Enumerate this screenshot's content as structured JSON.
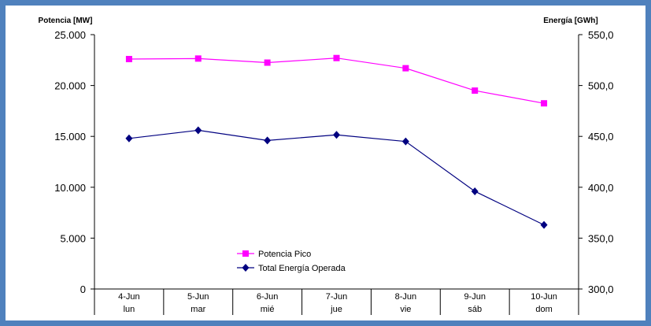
{
  "chart_data": {
    "type": "line",
    "categories": [
      "4-Jun",
      "5-Jun",
      "6-Jun",
      "7-Jun",
      "8-Jun",
      "9-Jun",
      "10-Jun"
    ],
    "day_labels": [
      "lun",
      "mar",
      "mié",
      "jue",
      "vie",
      "sáb",
      "dom"
    ],
    "y_left": {
      "label": "Potencia [MW]",
      "ylim": [
        0,
        25000
      ],
      "ticks": [
        0,
        5000,
        10000,
        15000,
        20000,
        25000
      ],
      "tick_labels": [
        "0",
        "5.000",
        "10.000",
        "15.000",
        "20.000",
        "25.000"
      ]
    },
    "y_right": {
      "label": "Energía [GWh]",
      "ylim": [
        300,
        550
      ],
      "ticks": [
        300,
        350,
        400,
        450,
        500,
        550
      ],
      "tick_labels": [
        "300,0",
        "350,0",
        "400,0",
        "450,0",
        "500,0",
        "550,0"
      ]
    },
    "series": [
      {
        "name": "Potencia Pico",
        "axis": "left",
        "color": "#ff00ff",
        "marker": "square",
        "values": [
          22600,
          22650,
          22250,
          22700,
          21700,
          19500,
          18250
        ]
      },
      {
        "name": "Total Energía Operada",
        "axis": "right",
        "color": "#000080",
        "marker": "diamond",
        "values": [
          448,
          456,
          446,
          451.5,
          445,
          396,
          363
        ]
      }
    ],
    "legend_position": "bottom-center",
    "grid": false
  }
}
